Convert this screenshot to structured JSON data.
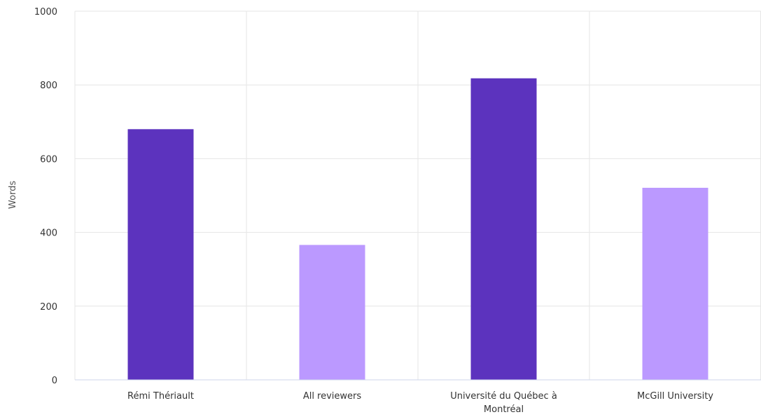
{
  "chart_data": {
    "type": "bar",
    "title": "",
    "xlabel": "",
    "ylabel": "Words",
    "ylim": [
      0,
      1000
    ],
    "yticks": [
      "0",
      "200",
      "400",
      "600",
      "800",
      "1000"
    ],
    "categories": [
      "Rémi Thériault",
      "All reviewers",
      "Université du Québec à Montréal",
      "McGill University"
    ],
    "values": [
      680,
      366,
      818,
      521
    ],
    "bar_colors": [
      "#5c33be",
      "#bb99ff",
      "#5c33be",
      "#bb99ff"
    ],
    "grid": true,
    "grid_color": "#e6e6e6",
    "axis_color": "#ccd6eb"
  }
}
